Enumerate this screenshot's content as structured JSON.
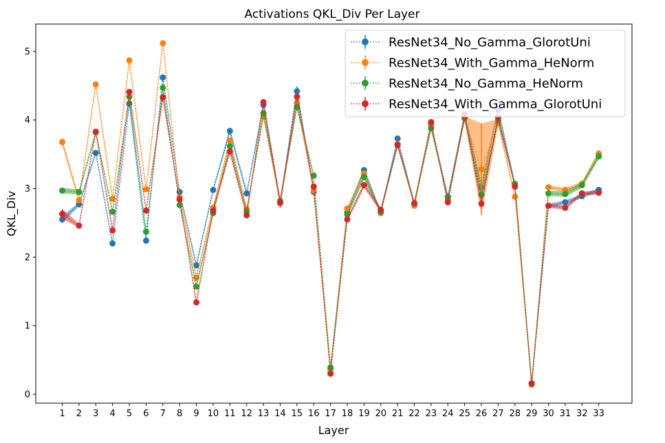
{
  "chart_data": {
    "type": "line",
    "title": "Activations QKL_Div Per Layer",
    "xlabel": "Layer",
    "ylabel": "QKL_Div",
    "categories": [
      "1",
      "2",
      "3",
      "4",
      "5",
      "6",
      "7",
      "8",
      "9",
      "10",
      "11",
      "12",
      "13",
      "14",
      "15",
      "16",
      "17",
      "18",
      "19",
      "20",
      "21",
      "22",
      "23",
      "24",
      "25",
      "26",
      "27",
      "28",
      "29",
      "30",
      "31",
      "32",
      "33"
    ],
    "ylim": [
      -0.13,
      5.4
    ],
    "yticks": [
      0,
      1,
      2,
      3,
      4,
      5
    ],
    "legend_position": "top-right",
    "series": [
      {
        "name": "ResNet34_No_Gamma_GlorotUni",
        "color": "#1f77b4",
        "values": [
          2.55,
          2.77,
          3.52,
          2.2,
          4.24,
          2.24,
          4.62,
          2.95,
          1.88,
          2.98,
          3.84,
          2.93,
          4.22,
          2.8,
          4.42,
          2.95,
          0.37,
          2.65,
          3.27,
          2.65,
          3.73,
          2.77,
          3.93,
          2.88,
          4.08,
          3.02,
          4.15,
          3.06,
          0.16,
          2.75,
          2.8,
          2.89,
          2.98
        ],
        "errors": [
          0.05,
          0.03,
          0.03,
          0.03,
          0.04,
          0.03,
          0.04,
          0.03,
          0.04,
          0.03,
          0.05,
          0.04,
          0.04,
          0.03,
          0.07,
          0.04,
          0.02,
          0.03,
          0.04,
          0.03,
          0.03,
          0.03,
          0.03,
          0.03,
          0.04,
          0.07,
          0.05,
          0.03,
          0.02,
          0.03,
          0.03,
          0.03,
          0.03
        ]
      },
      {
        "name": "ResNet34_With_Gamma_HeNorm",
        "color": "#ff7f0e",
        "values": [
          3.68,
          2.83,
          4.52,
          2.85,
          4.87,
          2.99,
          5.12,
          2.87,
          1.7,
          2.72,
          3.7,
          2.7,
          4.05,
          2.8,
          4.25,
          2.97,
          0.35,
          2.71,
          3.22,
          2.64,
          3.65,
          2.75,
          3.9,
          2.82,
          4.02,
          3.28,
          3.96,
          2.88,
          0.14,
          3.02,
          2.98,
          3.07,
          3.51
        ],
        "errors": [
          0.05,
          0.04,
          0.04,
          0.04,
          0.04,
          0.04,
          0.04,
          0.04,
          0.04,
          0.04,
          0.04,
          0.04,
          0.04,
          0.04,
          0.04,
          0.04,
          0.02,
          0.03,
          0.04,
          0.03,
          0.03,
          0.03,
          0.03,
          0.03,
          0.04,
          0.67,
          0.05,
          0.03,
          0.02,
          0.03,
          0.03,
          0.03,
          0.05
        ]
      },
      {
        "name": "ResNet34_No_Gamma_HeNorm",
        "color": "#2ca02c",
        "values": [
          2.97,
          2.95,
          3.82,
          2.66,
          4.34,
          2.37,
          4.47,
          2.76,
          1.57,
          2.64,
          3.62,
          2.66,
          4.1,
          2.82,
          4.19,
          3.19,
          0.39,
          2.62,
          3.17,
          2.66,
          3.63,
          2.78,
          3.88,
          2.86,
          4.03,
          2.91,
          4.0,
          3.07,
          0.15,
          2.93,
          2.92,
          3.05,
          3.47
        ],
        "errors": [
          0.04,
          0.04,
          0.03,
          0.04,
          0.04,
          0.04,
          0.05,
          0.03,
          0.04,
          0.03,
          0.04,
          0.03,
          0.04,
          0.03,
          0.04,
          0.03,
          0.02,
          0.03,
          0.04,
          0.03,
          0.03,
          0.03,
          0.03,
          0.03,
          0.04,
          0.05,
          0.04,
          0.03,
          0.02,
          0.04,
          0.04,
          0.04,
          0.04
        ]
      },
      {
        "name": "ResNet34_With_Gamma_GlorotUni",
        "color": "#d62728",
        "values": [
          2.63,
          2.46,
          3.83,
          2.39,
          4.41,
          2.68,
          4.33,
          2.84,
          1.34,
          2.68,
          3.54,
          2.61,
          4.26,
          2.79,
          4.34,
          3.03,
          0.3,
          2.55,
          3.05,
          2.69,
          3.64,
          2.79,
          3.97,
          2.8,
          4.06,
          2.78,
          4.04,
          3.03,
          0.16,
          2.75,
          2.72,
          2.93,
          2.94
        ],
        "errors": [
          0.07,
          0.03,
          0.03,
          0.04,
          0.04,
          0.03,
          0.05,
          0.03,
          0.04,
          0.03,
          0.04,
          0.03,
          0.04,
          0.07,
          0.04,
          0.03,
          0.02,
          0.03,
          0.04,
          0.03,
          0.03,
          0.03,
          0.03,
          0.03,
          0.04,
          0.05,
          0.04,
          0.03,
          0.02,
          0.03,
          0.03,
          0.03,
          0.03
        ]
      }
    ]
  }
}
